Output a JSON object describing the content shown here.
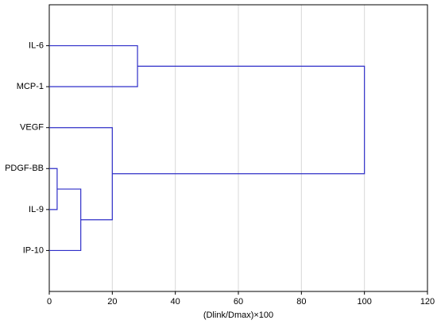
{
  "chart_data": {
    "type": "dendrogram",
    "categories": [
      "IL-6",
      "MCP-1",
      "VEGF",
      "PDGF-BB",
      "IL-9",
      "IP-10"
    ],
    "merges": [
      {
        "left": 3,
        "right": 4,
        "height": 2.5
      },
      {
        "left": 6,
        "right": 5,
        "height": 10
      },
      {
        "left": 2,
        "right": 7,
        "height": 20
      },
      {
        "left": 0,
        "right": 1,
        "height": 28
      },
      {
        "left": 9,
        "right": 8,
        "height": 100
      }
    ],
    "color": "#2e2ec8",
    "xlabel": "(Dlink/Dmax)×100",
    "xlim": [
      0,
      120
    ],
    "xticks": [
      0,
      20,
      40,
      60,
      80,
      100,
      120
    ],
    "grid": true
  }
}
